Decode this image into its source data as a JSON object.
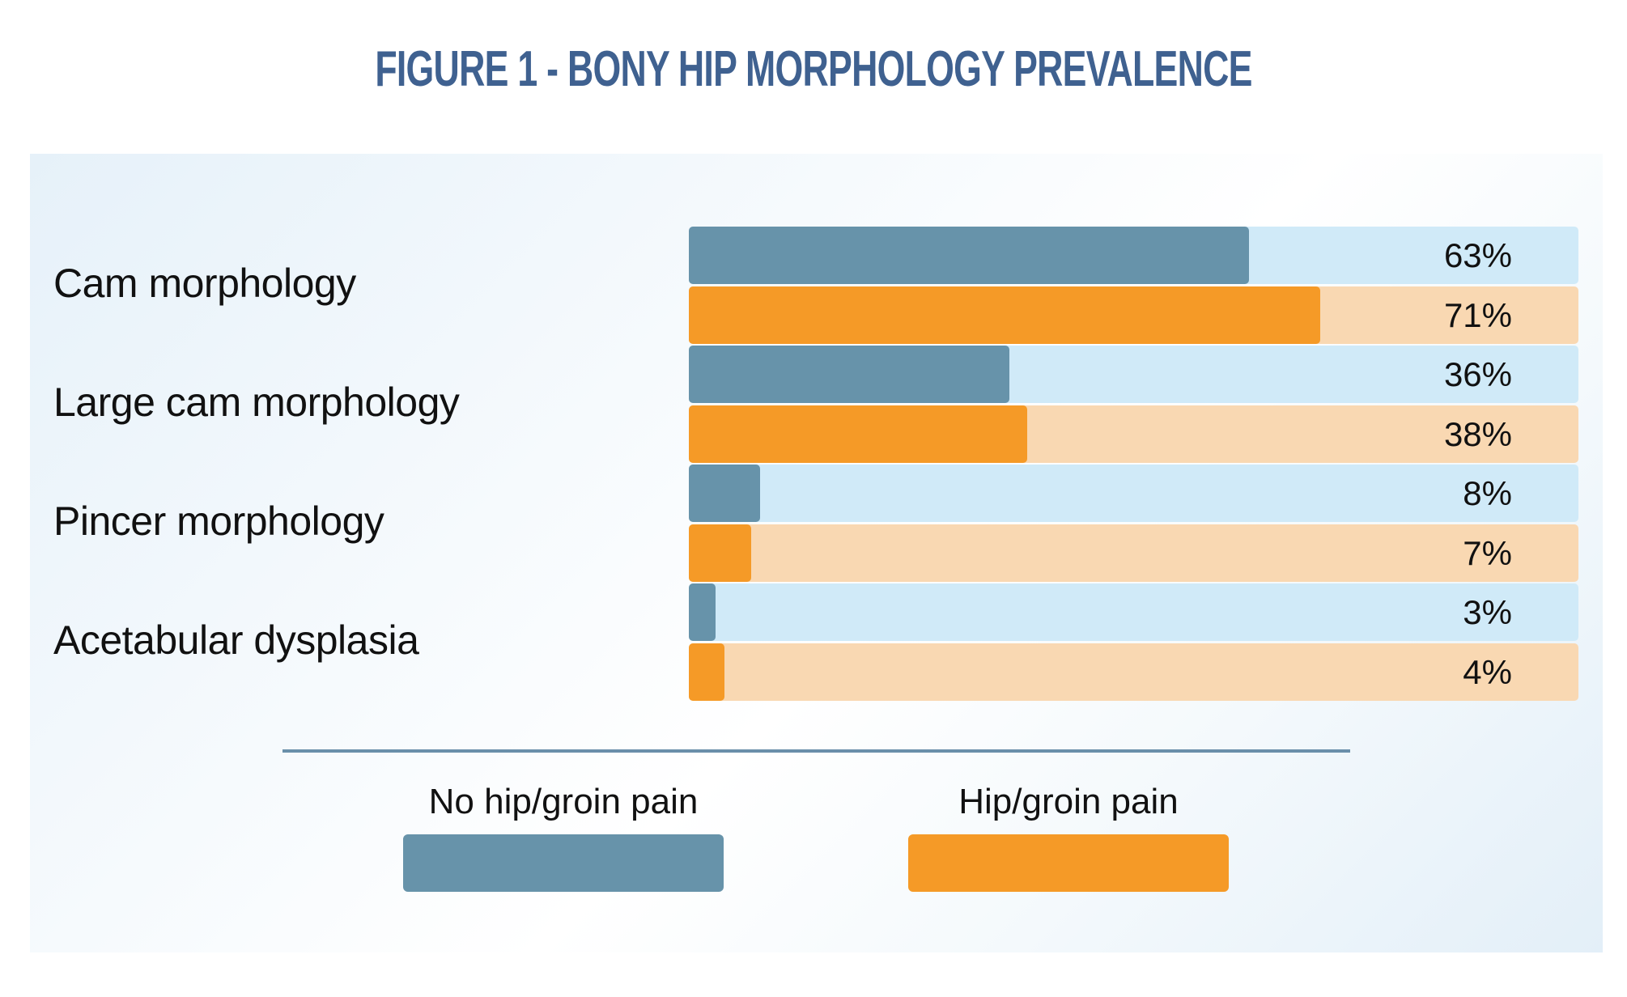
{
  "chart_data": {
    "type": "bar",
    "orientation": "horizontal",
    "title": "Figure 1 - Bony hip morphology prevalence",
    "categories": [
      "Cam morphology",
      "Large cam morphology",
      "Pincer morphology",
      "Acetabular dysplasia"
    ],
    "series": [
      {
        "name": "No hip/groin pain",
        "values": [
          63,
          36,
          8,
          3
        ],
        "labels": [
          "63%",
          "36%",
          "8%",
          "3%"
        ],
        "color": "#6793aa",
        "track_color": "#d0eaf8"
      },
      {
        "name": "Hip/groin pain",
        "values": [
          71,
          38,
          7,
          4
        ],
        "labels": [
          "71%",
          "38%",
          "7%",
          "4%"
        ],
        "color": "#f59a27",
        "track_color": "#f9d8b2"
      }
    ],
    "xlim": [
      0,
      100
    ],
    "unit": "%",
    "grid": false,
    "legend_placement": "bottom"
  }
}
